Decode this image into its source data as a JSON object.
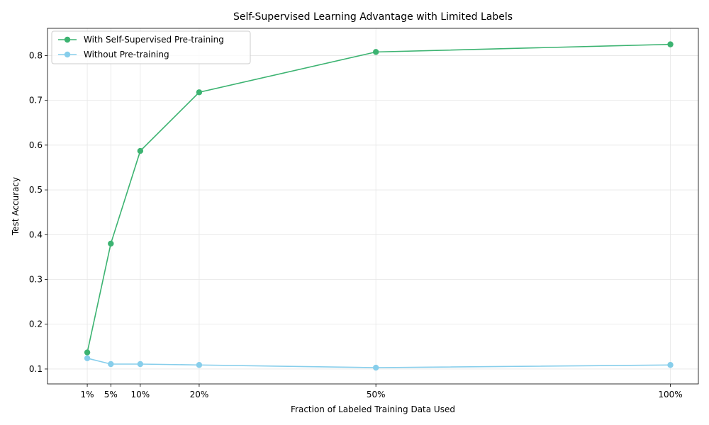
{
  "chart_data": {
    "type": "line",
    "title": "Self-Supervised Learning Advantage with Limited Labels",
    "xlabel": "Fraction of Labeled Training Data Used",
    "ylabel": "Test Accuracy",
    "x": [
      0.01,
      0.05,
      0.1,
      0.2,
      0.5,
      1.0
    ],
    "x_tick_labels": [
      "1%",
      "5%",
      "10%",
      "20%",
      "50%",
      "100%"
    ],
    "y_ticks": [
      0.1,
      0.2,
      0.3,
      0.4,
      0.5,
      0.6,
      0.7,
      0.8
    ],
    "y_tick_labels": [
      "0.1",
      "0.2",
      "0.3",
      "0.4",
      "0.5",
      "0.6",
      "0.7",
      "0.8"
    ],
    "xlim": [
      -0.0575,
      1.0475
    ],
    "ylim": [
      0.0667,
      0.8608
    ],
    "grid": true,
    "legend_position": "top-left",
    "series": [
      {
        "name": "With Self-Supervised Pre-training",
        "color": "#3cb371",
        "values": [
          0.137,
          0.38,
          0.587,
          0.718,
          0.808,
          0.825
        ]
      },
      {
        "name": "Without Pre-training",
        "color": "#87ceeb",
        "values": [
          0.124,
          0.111,
          0.111,
          0.109,
          0.103,
          0.109
        ]
      }
    ]
  }
}
